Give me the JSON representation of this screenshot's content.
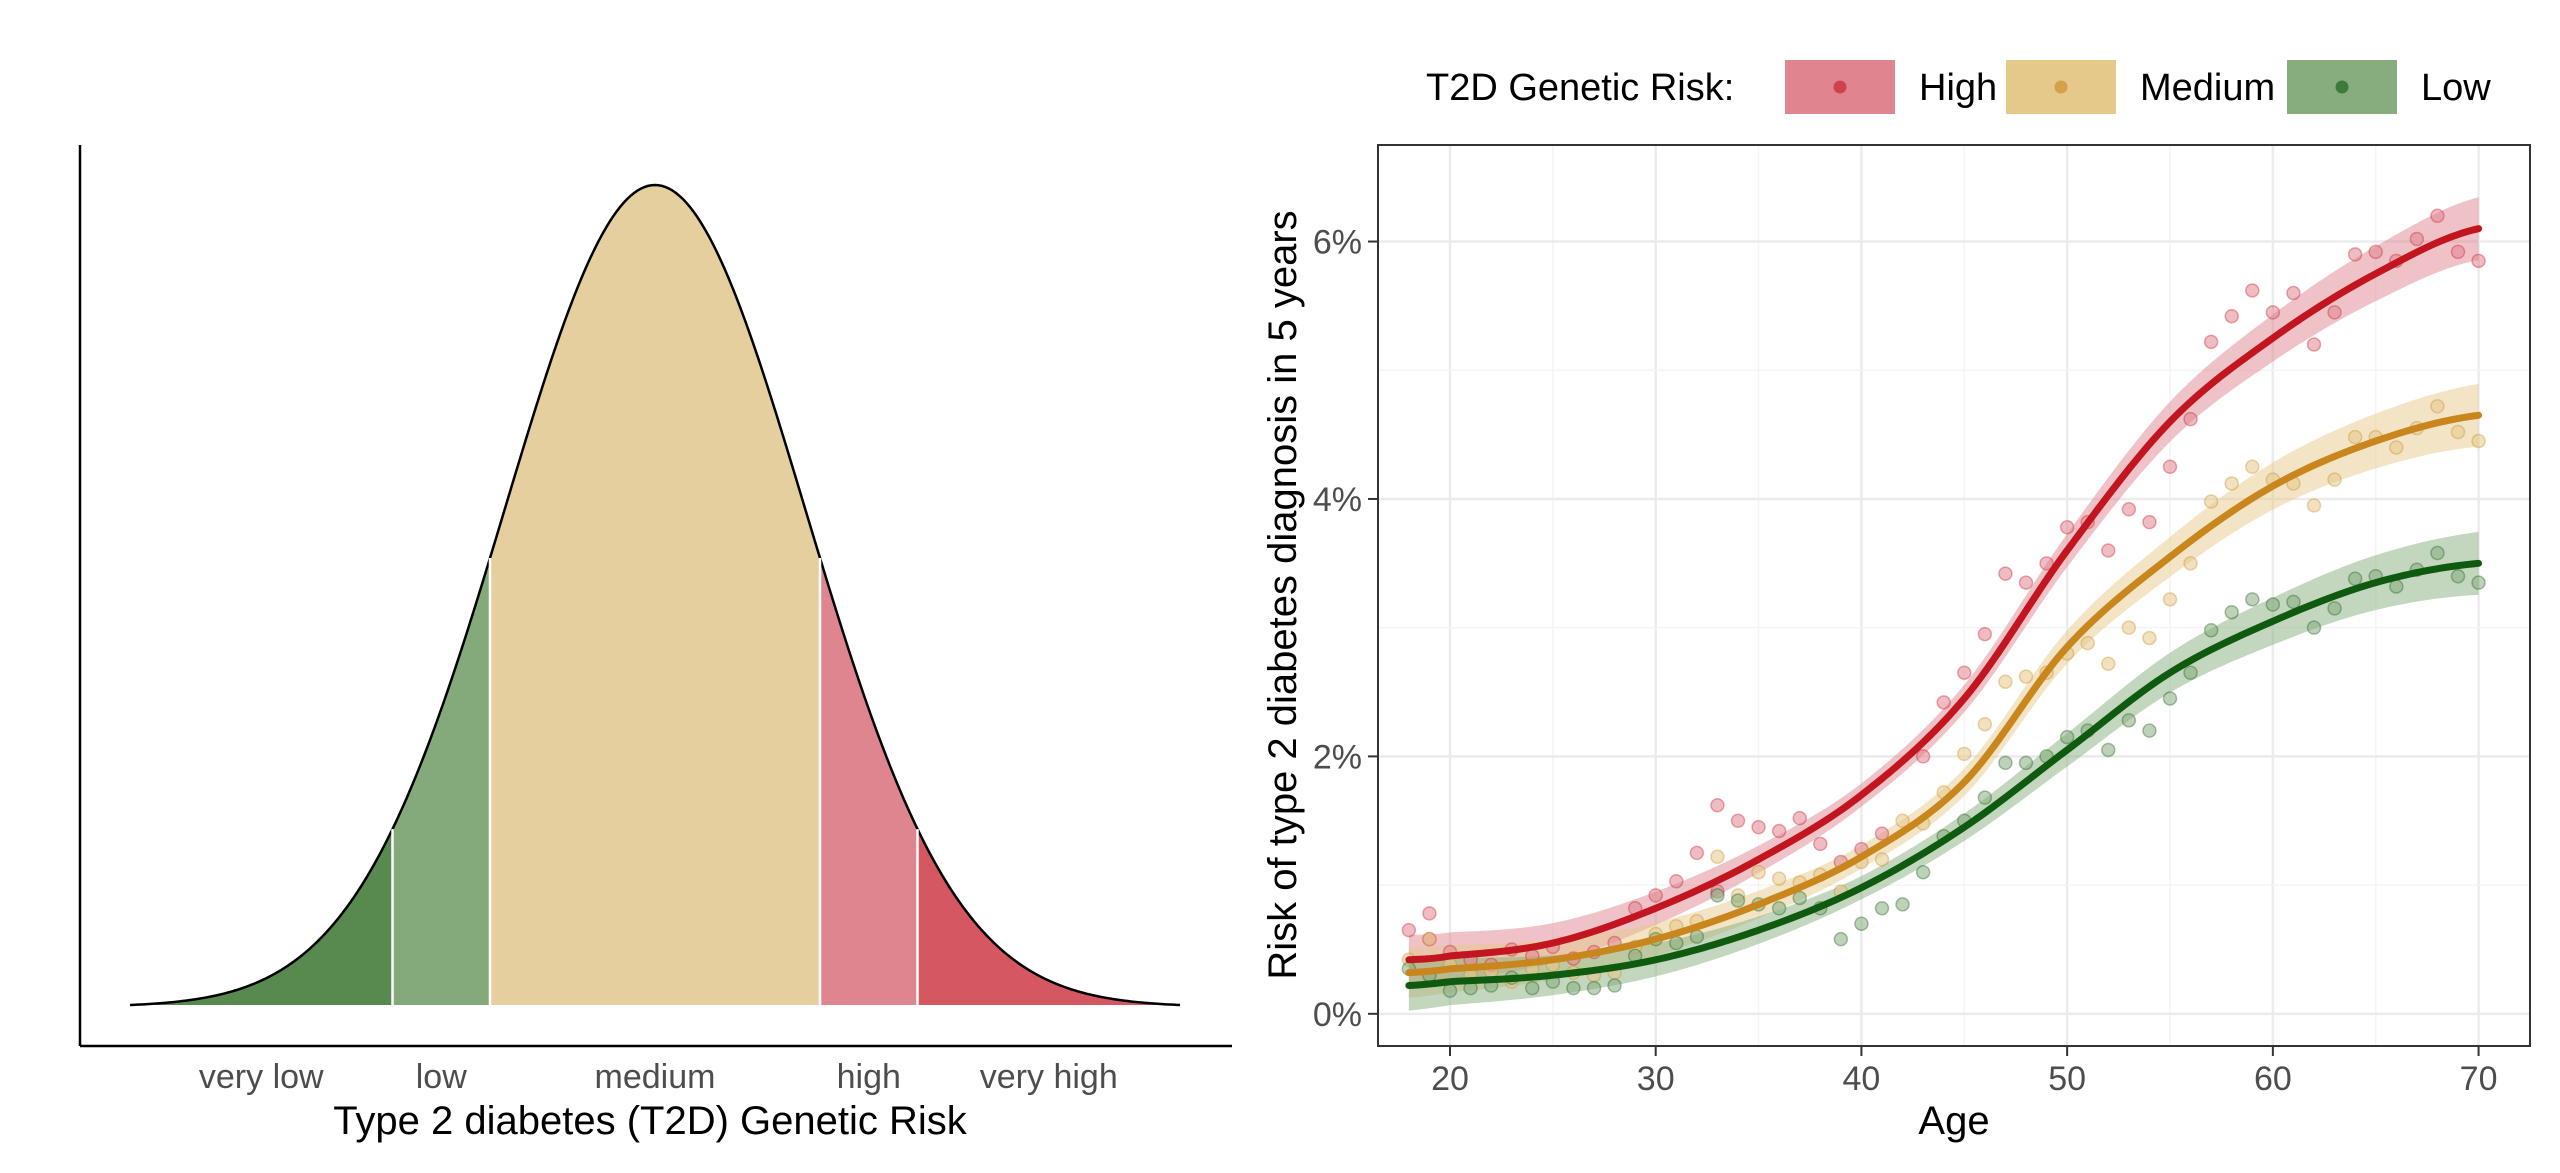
{
  "chart_data": [
    {
      "type": "area",
      "title": "",
      "xlabel": "Type 2 diabetes (T2D) Genetic Risk",
      "ylabel": "",
      "distribution": "normal",
      "x_range_sd": [
        -3.5,
        3.5
      ],
      "categories": [
        {
          "label": "very low",
          "from_sd": -3.5,
          "to_sd": -1.75,
          "color": "#58894f"
        },
        {
          "label": "low",
          "from_sd": -1.75,
          "to_sd": -1.1,
          "color": "#84aa7c"
        },
        {
          "label": "medium",
          "from_sd": -1.1,
          "to_sd": 1.1,
          "color": "#e5cf9f"
        },
        {
          "label": "high",
          "from_sd": 1.1,
          "to_sd": 1.75,
          "color": "#df858f"
        },
        {
          "label": "very high",
          "from_sd": 1.75,
          "to_sd": 3.5,
          "color": "#d45762"
        }
      ]
    },
    {
      "type": "line",
      "title": "",
      "xlabel": "Age",
      "ylabel": "Risk of type 2 diabetes diagnosis in 5 years",
      "xlim": [
        16.5,
        72.5
      ],
      "ylim": [
        -0.25,
        6.75
      ],
      "xticks": [
        20,
        30,
        40,
        50,
        60,
        70
      ],
      "yticks": [
        0,
        2,
        4,
        6
      ],
      "ytick_labels": [
        "0%",
        "2%",
        "4%",
        "6%"
      ],
      "grid": true,
      "legend": {
        "title": "T2D Genetic Risk:",
        "position": "top"
      },
      "curve_x": [
        18,
        20,
        25,
        30,
        35,
        40,
        45,
        50,
        55,
        60,
        65,
        70
      ],
      "series": [
        {
          "name": "High",
          "color": "#c3151f",
          "fill": "#e0858f",
          "curve_y": [
            0.42,
            0.45,
            0.55,
            0.82,
            1.2,
            1.7,
            2.45,
            3.6,
            4.6,
            5.25,
            5.75,
            6.1
          ],
          "points": [
            [
              18,
              0.65
            ],
            [
              19,
              0.58
            ],
            [
              19,
              0.78
            ],
            [
              20,
              0.48
            ],
            [
              21,
              0.42
            ],
            [
              22,
              0.38
            ],
            [
              23,
              0.5
            ],
            [
              24,
              0.45
            ],
            [
              25,
              0.52
            ],
            [
              26,
              0.43
            ],
            [
              27,
              0.48
            ],
            [
              28,
              0.55
            ],
            [
              29,
              0.82
            ],
            [
              30,
              0.92
            ],
            [
              31,
              1.03
            ],
            [
              32,
              1.25
            ],
            [
              33,
              1.62
            ],
            [
              33,
              0.95
            ],
            [
              34,
              1.5
            ],
            [
              35,
              1.45
            ],
            [
              36,
              1.42
            ],
            [
              37,
              1.52
            ],
            [
              38,
              1.32
            ],
            [
              39,
              1.18
            ],
            [
              40,
              1.28
            ],
            [
              41,
              1.4
            ],
            [
              43,
              2.0
            ],
            [
              44,
              2.42
            ],
            [
              45,
              2.65
            ],
            [
              46,
              2.95
            ],
            [
              47,
              3.42
            ],
            [
              48,
              3.35
            ],
            [
              49,
              3.5
            ],
            [
              50,
              3.78
            ],
            [
              51,
              3.82
            ],
            [
              52,
              3.6
            ],
            [
              53,
              3.92
            ],
            [
              54,
              3.82
            ],
            [
              55,
              4.25
            ],
            [
              56,
              4.62
            ],
            [
              57,
              5.22
            ],
            [
              58,
              5.42
            ],
            [
              59,
              5.62
            ],
            [
              60,
              5.45
            ],
            [
              61,
              5.6
            ],
            [
              62,
              5.2
            ],
            [
              63,
              5.45
            ],
            [
              64,
              5.9
            ],
            [
              65,
              5.92
            ],
            [
              66,
              5.85
            ],
            [
              67,
              6.02
            ],
            [
              68,
              6.2
            ],
            [
              69,
              5.92
            ],
            [
              70,
              5.85
            ]
          ]
        },
        {
          "name": "Medium",
          "color": "#c8861c",
          "fill": "#e5c98b",
          "curve_y": [
            0.32,
            0.35,
            0.42,
            0.58,
            0.85,
            1.22,
            1.8,
            2.85,
            3.55,
            4.1,
            4.45,
            4.65
          ],
          "points": [
            [
              18,
              0.42
            ],
            [
              19,
              0.58
            ],
            [
              20,
              0.38
            ],
            [
              21,
              0.3
            ],
            [
              22,
              0.33
            ],
            [
              23,
              0.25
            ],
            [
              24,
              0.35
            ],
            [
              25,
              0.38
            ],
            [
              26,
              0.32
            ],
            [
              27,
              0.3
            ],
            [
              28,
              0.32
            ],
            [
              29,
              0.52
            ],
            [
              30,
              0.62
            ],
            [
              31,
              0.68
            ],
            [
              32,
              0.72
            ],
            [
              33,
              1.22
            ],
            [
              34,
              0.92
            ],
            [
              35,
              1.1
            ],
            [
              36,
              1.05
            ],
            [
              37,
              1.02
            ],
            [
              38,
              1.08
            ],
            [
              39,
              0.95
            ],
            [
              40,
              1.18
            ],
            [
              41,
              1.2
            ],
            [
              42,
              1.5
            ],
            [
              43,
              1.48
            ],
            [
              44,
              1.72
            ],
            [
              45,
              2.02
            ],
            [
              46,
              2.25
            ],
            [
              47,
              2.58
            ],
            [
              48,
              2.62
            ],
            [
              49,
              2.65
            ],
            [
              50,
              2.8
            ],
            [
              51,
              2.88
            ],
            [
              52,
              2.72
            ],
            [
              53,
              3.0
            ],
            [
              54,
              2.92
            ],
            [
              55,
              3.22
            ],
            [
              56,
              3.5
            ],
            [
              57,
              3.98
            ],
            [
              58,
              4.12
            ],
            [
              59,
              4.25
            ],
            [
              60,
              4.15
            ],
            [
              61,
              4.12
            ],
            [
              62,
              3.95
            ],
            [
              63,
              4.15
            ],
            [
              64,
              4.48
            ],
            [
              65,
              4.48
            ],
            [
              66,
              4.4
            ],
            [
              67,
              4.55
            ],
            [
              68,
              4.72
            ],
            [
              69,
              4.52
            ],
            [
              70,
              4.45
            ]
          ]
        },
        {
          "name": "Low",
          "color": "#0e5a0e",
          "fill": "#87ad7e",
          "curve_y": [
            0.22,
            0.25,
            0.3,
            0.42,
            0.65,
            0.98,
            1.45,
            2.05,
            2.65,
            3.05,
            3.35,
            3.5
          ],
          "points": [
            [
              18,
              0.35
            ],
            [
              19,
              0.3
            ],
            [
              20,
              0.18
            ],
            [
              21,
              0.2
            ],
            [
              22,
              0.22
            ],
            [
              23,
              0.28
            ],
            [
              24,
              0.2
            ],
            [
              25,
              0.25
            ],
            [
              26,
              0.2
            ],
            [
              27,
              0.2
            ],
            [
              28,
              0.22
            ],
            [
              29,
              0.45
            ],
            [
              30,
              0.58
            ],
            [
              31,
              0.55
            ],
            [
              32,
              0.6
            ],
            [
              33,
              0.92
            ],
            [
              34,
              0.88
            ],
            [
              35,
              0.85
            ],
            [
              36,
              0.82
            ],
            [
              37,
              0.9
            ],
            [
              38,
              0.82
            ],
            [
              39,
              0.58
            ],
            [
              40,
              0.7
            ],
            [
              41,
              0.82
            ],
            [
              42,
              0.85
            ],
            [
              43,
              1.1
            ],
            [
              44,
              1.38
            ],
            [
              45,
              1.5
            ],
            [
              46,
              1.68
            ],
            [
              47,
              1.95
            ],
            [
              48,
              1.95
            ],
            [
              49,
              2.0
            ],
            [
              50,
              2.15
            ],
            [
              51,
              2.2
            ],
            [
              52,
              2.05
            ],
            [
              53,
              2.28
            ],
            [
              54,
              2.2
            ],
            [
              55,
              2.45
            ],
            [
              56,
              2.65
            ],
            [
              57,
              2.98
            ],
            [
              58,
              3.12
            ],
            [
              59,
              3.22
            ],
            [
              60,
              3.18
            ],
            [
              61,
              3.2
            ],
            [
              62,
              3.0
            ],
            [
              63,
              3.15
            ],
            [
              64,
              3.38
            ],
            [
              65,
              3.4
            ],
            [
              66,
              3.32
            ],
            [
              67,
              3.45
            ],
            [
              68,
              3.58
            ],
            [
              69,
              3.4
            ],
            [
              70,
              3.35
            ]
          ]
        }
      ]
    }
  ]
}
